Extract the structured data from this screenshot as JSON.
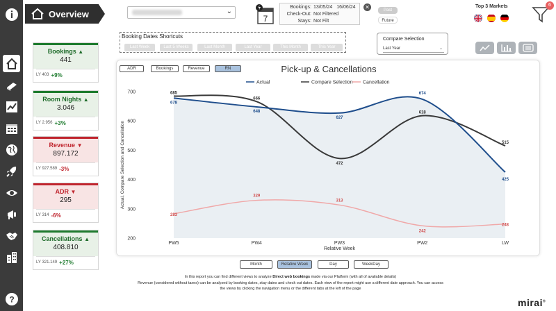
{
  "header": {
    "title": "Overview",
    "info": {
      "bookings_label": "Bookings:",
      "bookings_from": "13/05/24",
      "bookings_to": "16/06/24",
      "checkout_label": "Check-Out:",
      "checkout_value": "Not Filtered",
      "stays_label": "Stays:",
      "stays_value": "Not Filt"
    },
    "past_label": "Past",
    "future_label": "Future",
    "markets_title": "Top 3 Markets",
    "filter_badge": "6"
  },
  "shortcuts": {
    "title": "Booking Dates Shortcuts",
    "buttons": [
      "Last Week",
      "Last 5 Weeks",
      "Last Month",
      "Last Year",
      "This Month",
      "This Year"
    ]
  },
  "compare": {
    "label": "Compare Selection",
    "value": "Last Year"
  },
  "kpis": [
    {
      "name": "Bookings",
      "value": "441",
      "ly_label": "LY 403",
      "pct": "+9%",
      "trend": "up"
    },
    {
      "name": "Room Nights",
      "value": "3.046",
      "ly_label": "LY 2.956",
      "pct": "+3%",
      "trend": "up"
    },
    {
      "name": "Revenue",
      "value": "897.172",
      "ly_label": "LY 927.589",
      "pct": "-3%",
      "trend": "down"
    },
    {
      "name": "ADR",
      "value": "295",
      "ly_label": "LY 314",
      "pct": "-6%",
      "trend": "down"
    },
    {
      "name": "Cancellations",
      "value": "408.810",
      "ly_label": "LY 321.149",
      "pct": "+27%",
      "trend": "up"
    }
  ],
  "metric_tabs": [
    "ADR",
    "Bookings",
    "Revenue",
    "RN"
  ],
  "active_metric": "RN",
  "view_tabs": [
    "Month",
    "Relative Week",
    "Day",
    "WeekDay"
  ],
  "active_view": "Relative Week",
  "description": {
    "line1_pre": "In this report you can find different views to analyze ",
    "line1_bold": "Direct web bookings",
    "line1_post": " made via our Platform (with all of available details)",
    "line2": "Revenue (considered without taxes) can be analyzed by booking dates, stay dates and check out dates. Each view of the report might use a different date approach.  You can access",
    "line3": "the views by clicking the navigation menu or the different tabs at the left of the page"
  },
  "brand": "mirai",
  "colors": {
    "actual": "#1f4e8c",
    "compare": "#3a3a3a",
    "cancellation": "#f0a8a8",
    "kpi_green": "#1e7b2e",
    "kpi_red": "#c0252e"
  },
  "chart_data": {
    "type": "line",
    "title": "Pick-up & Cancellations",
    "xlabel": "Relative Week",
    "ylabel": "Actual, Compare Selection and Cancellation",
    "categories": [
      "PW5",
      "PW4",
      "PW3",
      "PW2",
      "LW"
    ],
    "ylim": [
      200,
      700
    ],
    "yticks": [
      200,
      300,
      400,
      500,
      600,
      700
    ],
    "legend_position": "top",
    "series": [
      {
        "name": "Actual",
        "values": [
          678,
          648,
          627,
          674,
          425
        ],
        "labels": [
          "678",
          "648",
          "627",
          "674",
          "425"
        ]
      },
      {
        "name": "Compare Selection",
        "values": [
          685,
          666,
          472,
          618,
          515
        ],
        "labels": [
          "685",
          "666",
          "472",
          "618",
          "515"
        ]
      },
      {
        "name": "Cancellation",
        "values": [
          283,
          329,
          313,
          242,
          248
        ],
        "labels": [
          "283",
          "329",
          "313",
          "242",
          "248"
        ]
      }
    ]
  }
}
